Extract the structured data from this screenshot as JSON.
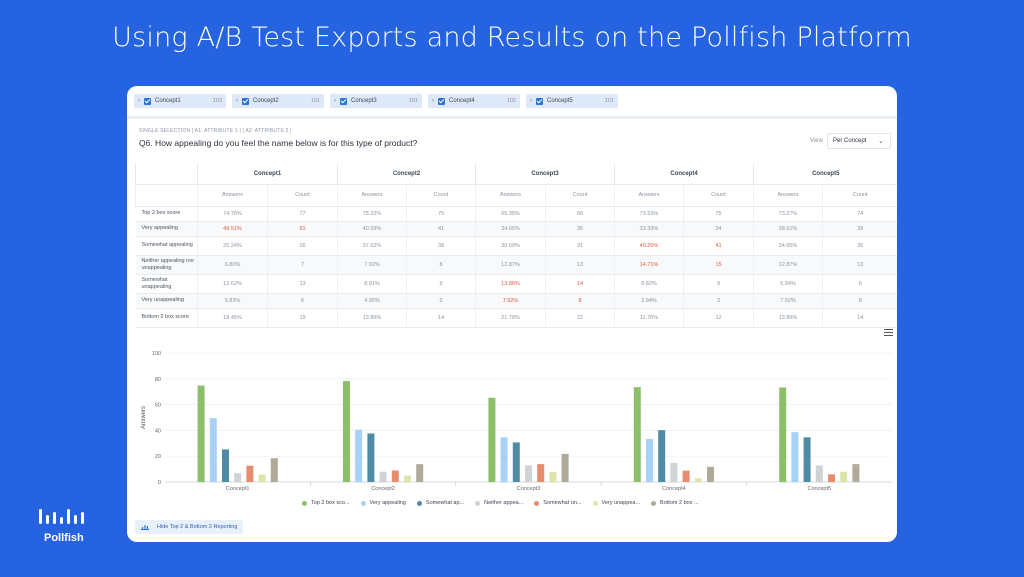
{
  "headline": "Using A/B Test Exports and Results on the Pollfish Platform",
  "brand": "Pollfish",
  "concept_chips": [
    {
      "label": "Concept1",
      "count": "103"
    },
    {
      "label": "Concept2",
      "count": "101"
    },
    {
      "label": "Concept3",
      "count": "101"
    },
    {
      "label": "Concept4",
      "count": "102"
    },
    {
      "label": "Concept5",
      "count": "101"
    }
  ],
  "question": {
    "meta": "SINGLE SELECTION  | A1: ATTRIBUTE 1 | | A2: ATTRIBUTE 2 |",
    "title": "Q6. How appealing do you feel the name below is for this type of product?"
  },
  "view": {
    "label": "View",
    "selected": "Per Concept"
  },
  "table": {
    "concepts": [
      "Concept1",
      "Concept2",
      "Concept3",
      "Concept4",
      "Concept5"
    ],
    "sub_headers": [
      "Answers",
      "Count"
    ],
    "rows": [
      {
        "label": "Top 2 box score",
        "cells": [
          [
            "74.76%",
            "77"
          ],
          [
            "78.22%",
            "79"
          ],
          [
            "65.35%",
            "66"
          ],
          [
            "73.53%",
            "75"
          ],
          [
            "73.27%",
            "74"
          ]
        ],
        "hl": []
      },
      {
        "label": "Very appealing",
        "cells": [
          [
            "49.51%",
            "51"
          ],
          [
            "40.59%",
            "41"
          ],
          [
            "34.65%",
            "35"
          ],
          [
            "33.33%",
            "34"
          ],
          [
            "38.61%",
            "39"
          ]
        ],
        "hl": [
          0
        ]
      },
      {
        "label": "Somewhat appealing",
        "cells": [
          [
            "25.24%",
            "26"
          ],
          [
            "37.62%",
            "38"
          ],
          [
            "30.69%",
            "31"
          ],
          [
            "40.20%",
            "41"
          ],
          [
            "34.65%",
            "35"
          ]
        ],
        "hl": [
          3
        ]
      },
      {
        "label": "Neither appealing nor unappealing",
        "cells": [
          [
            "6.80%",
            "7"
          ],
          [
            "7.92%",
            "8"
          ],
          [
            "12.87%",
            "13"
          ],
          [
            "14.71%",
            "15"
          ],
          [
            "12.87%",
            "13"
          ]
        ],
        "hl": [
          3
        ]
      },
      {
        "label": "Somewhat unappealing",
        "cells": [
          [
            "12.62%",
            "13"
          ],
          [
            "8.91%",
            "9"
          ],
          [
            "13.86%",
            "14"
          ],
          [
            "8.82%",
            "9"
          ],
          [
            "5.94%",
            "6"
          ]
        ],
        "hl": [
          2
        ]
      },
      {
        "label": "Very unappealing",
        "cells": [
          [
            "5.83%",
            "6"
          ],
          [
            "4.95%",
            "5"
          ],
          [
            "7.92%",
            "8"
          ],
          [
            "2.94%",
            "3"
          ],
          [
            "7.92%",
            "8"
          ]
        ],
        "hl": [
          2
        ]
      },
      {
        "label": "Bottom 2 box score",
        "cells": [
          [
            "18.45%",
            "19"
          ],
          [
            "13.86%",
            "14"
          ],
          [
            "21.78%",
            "22"
          ],
          [
            "11.76%",
            "12"
          ],
          [
            "13.86%",
            "14"
          ]
        ],
        "hl": []
      }
    ]
  },
  "chart_data": {
    "type": "bar",
    "categories": [
      "Concept1",
      "Concept2",
      "Concept3",
      "Concept4",
      "Concept5"
    ],
    "ylabel": "Answers",
    "ylim": [
      0,
      100
    ],
    "yticks": [
      0,
      20,
      40,
      60,
      80,
      100
    ],
    "series": [
      {
        "name": "Top 2 box sco...",
        "color": "#8bbf6a",
        "values": [
          74.76,
          78.22,
          65.35,
          73.53,
          73.27
        ]
      },
      {
        "name": "Very appealing",
        "color": "#a8d1f7",
        "values": [
          49.51,
          40.59,
          34.65,
          33.33,
          38.61
        ]
      },
      {
        "name": "Somewhat ap...",
        "color": "#4e8ba5",
        "values": [
          25.24,
          37.62,
          30.69,
          40.2,
          34.65
        ]
      },
      {
        "name": "Neither appea...",
        "color": "#cfd3d6",
        "values": [
          6.8,
          7.92,
          12.87,
          14.71,
          12.87
        ]
      },
      {
        "name": "Somewhat un...",
        "color": "#e58d6e",
        "values": [
          12.62,
          8.91,
          13.86,
          8.82,
          5.94
        ]
      },
      {
        "name": "Very unappea...",
        "color": "#dde6a8",
        "values": [
          5.83,
          4.95,
          7.92,
          2.94,
          7.92
        ]
      },
      {
        "name": "Bottom 2 box ...",
        "color": "#b0aa98",
        "values": [
          18.45,
          13.86,
          21.78,
          11.76,
          13.86
        ]
      }
    ],
    "legend_position": "bottom"
  },
  "toggle_button": "Hide Top 2 & Bottom 2 Reporting"
}
